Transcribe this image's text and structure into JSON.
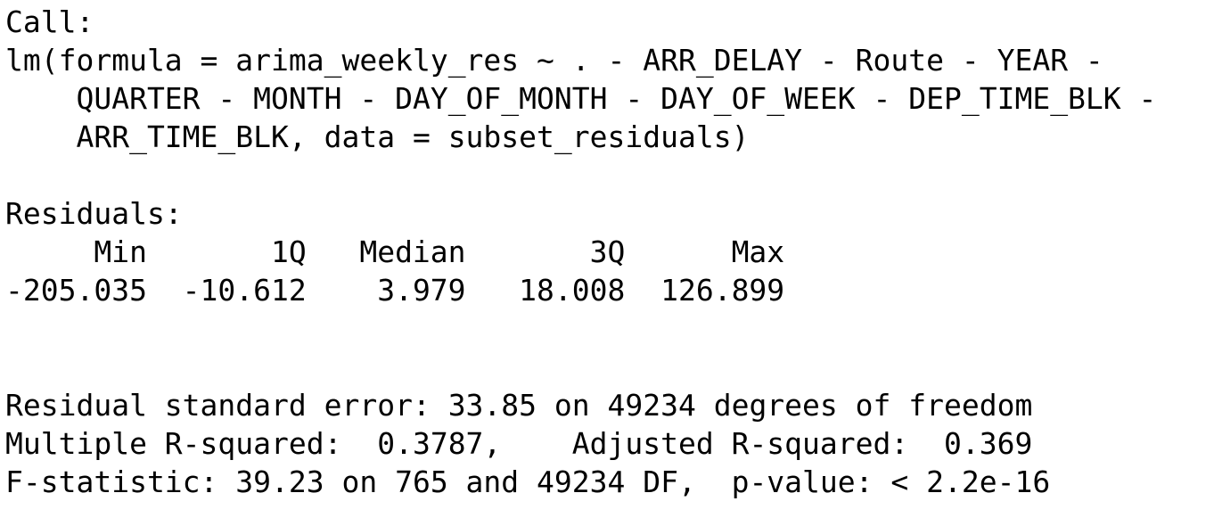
{
  "call": {
    "label": "Call:",
    "lines": [
      "lm(formula = arima_weekly_res ~ . - ARR_DELAY - Route - YEAR -",
      "QUARTER - MONTH - DAY_OF_MONTH - DAY_OF_WEEK - DEP_TIME_BLK -",
      "ARR_TIME_BLK, data = subset_residuals)"
    ]
  },
  "residuals": {
    "label": "Residuals:",
    "headers": [
      "Min",
      "1Q",
      "Median",
      "3Q",
      "Max"
    ],
    "values": [
      "-205.035",
      "-10.612",
      "3.979",
      "18.008",
      "126.899"
    ]
  },
  "summary": [
    "Residual standard error: 33.85 on 49234 degrees of freedom",
    "Multiple R-squared:  0.3787,\tAdjusted R-squared:  0.369 ",
    "F-statistic: 39.23 on 765 and 49234 DF,  p-value: < 2.2e-16"
  ]
}
